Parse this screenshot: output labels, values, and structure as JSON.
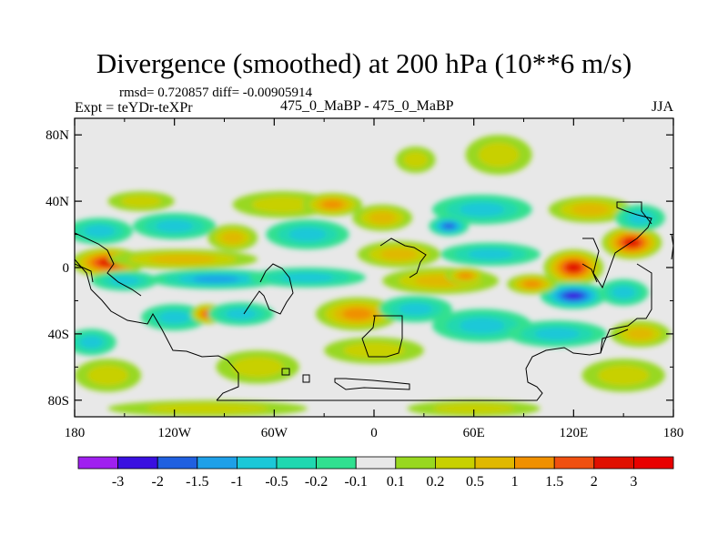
{
  "chart_data": {
    "type": "heatmap",
    "title": "Divergence (smoothed) at 200 hPa (10**6 m/s)",
    "stats_text": "rmsd= 0.720857 diff= -0.00905914",
    "experiment": "Expt = teYDr-teXPr",
    "runs": "475_0_MaBP - 475_0_MaBP",
    "season": "JJA",
    "x_range": [
      -180,
      180
    ],
    "y_range": [
      -90,
      90
    ],
    "x_ticks": [
      {
        "value": -180,
        "label": "180"
      },
      {
        "value": -120,
        "label": "120W"
      },
      {
        "value": -60,
        "label": "60W"
      },
      {
        "value": 0,
        "label": "0"
      },
      {
        "value": 60,
        "label": "60E"
      },
      {
        "value": 120,
        "label": "120E"
      },
      {
        "value": 180,
        "label": "180"
      }
    ],
    "y_ticks": [
      {
        "value": 80,
        "label": "80N"
      },
      {
        "value": 40,
        "label": "40N"
      },
      {
        "value": 0,
        "label": "0"
      },
      {
        "value": -40,
        "label": "40S"
      },
      {
        "value": -80,
        "label": "80S"
      }
    ],
    "colorbar": {
      "levels": [
        "-3",
        "-2",
        "-1.5",
        "-1",
        "-0.5",
        "-0.2",
        "-0.1",
        "0.1",
        "0.2",
        "0.5",
        "1",
        "1.5",
        "2",
        "3"
      ],
      "colors": [
        "#a020f0",
        "#3a10e0",
        "#2060e0",
        "#1ea0e8",
        "#1cc8d8",
        "#20d8b0",
        "#30e090",
        "#e8e8e8",
        "#98d820",
        "#c8d000",
        "#e0b800",
        "#f09000",
        "#f05010",
        "#e01000",
        "#e80000"
      ]
    },
    "features": [
      {
        "lon": -160,
        "lat": 3,
        "rx": 22,
        "ry": 9,
        "value": 2.2
      },
      {
        "lon": -115,
        "lat": 5,
        "rx": 45,
        "ry": 6,
        "value": 0.9
      },
      {
        "lon": -150,
        "lat": -8,
        "rx": 20,
        "ry": 6,
        "value": -0.8
      },
      {
        "lon": -95,
        "lat": -7,
        "rx": 40,
        "ry": 6,
        "value": -1.0
      },
      {
        "lon": -40,
        "lat": -6,
        "rx": 35,
        "ry": 6,
        "value": -0.7
      },
      {
        "lon": -165,
        "lat": 22,
        "rx": 20,
        "ry": 8,
        "value": -0.6
      },
      {
        "lon": -120,
        "lat": 25,
        "rx": 25,
        "ry": 8,
        "value": -0.5
      },
      {
        "lon": -85,
        "lat": 18,
        "rx": 15,
        "ry": 8,
        "value": 0.7
      },
      {
        "lon": -40,
        "lat": 20,
        "rx": 25,
        "ry": 9,
        "value": -0.6
      },
      {
        "lon": -55,
        "lat": 38,
        "rx": 30,
        "ry": 8,
        "value": 0.4
      },
      {
        "lon": -25,
        "lat": 38,
        "rx": 18,
        "ry": 7,
        "value": 1.0
      },
      {
        "lon": -140,
        "lat": 40,
        "rx": 20,
        "ry": 6,
        "value": 0.3
      },
      {
        "lon": 75,
        "lat": 68,
        "rx": 20,
        "ry": 12,
        "value": 0.2
      },
      {
        "lon": 25,
        "lat": 65,
        "rx": 12,
        "ry": 8,
        "value": 0.2
      },
      {
        "lon": 65,
        "lat": 35,
        "rx": 30,
        "ry": 9,
        "value": -0.6
      },
      {
        "lon": 45,
        "lat": 25,
        "rx": 12,
        "ry": 6,
        "value": -1.6
      },
      {
        "lon": 5,
        "lat": 30,
        "rx": 18,
        "ry": 8,
        "value": 0.7
      },
      {
        "lon": 15,
        "lat": 8,
        "rx": 25,
        "ry": 8,
        "value": 0.9
      },
      {
        "lon": 70,
        "lat": 8,
        "rx": 30,
        "ry": 7,
        "value": -0.6
      },
      {
        "lon": 40,
        "lat": -8,
        "rx": 35,
        "ry": 8,
        "value": 0.8
      },
      {
        "lon": 55,
        "lat": -5,
        "rx": 12,
        "ry": 5,
        "value": 1.4
      },
      {
        "lon": 120,
        "lat": 0,
        "rx": 18,
        "ry": 11,
        "value": 2.6
      },
      {
        "lon": 155,
        "lat": 15,
        "rx": 18,
        "ry": 10,
        "value": 2.1
      },
      {
        "lon": 130,
        "lat": 35,
        "rx": 25,
        "ry": 8,
        "value": 0.5
      },
      {
        "lon": 160,
        "lat": 30,
        "rx": 15,
        "ry": 8,
        "value": -0.7
      },
      {
        "lon": 120,
        "lat": -17,
        "rx": 20,
        "ry": 8,
        "value": -2.0
      },
      {
        "lon": 150,
        "lat": -15,
        "rx": 15,
        "ry": 8,
        "value": -0.6
      },
      {
        "lon": 95,
        "lat": -10,
        "rx": 15,
        "ry": 6,
        "value": 1.0
      },
      {
        "lon": -120,
        "lat": -30,
        "rx": 20,
        "ry": 8,
        "value": -0.6
      },
      {
        "lon": -100,
        "lat": -28,
        "rx": 10,
        "ry": 6,
        "value": 1.5
      },
      {
        "lon": -80,
        "lat": -28,
        "rx": 20,
        "ry": 7,
        "value": -0.8
      },
      {
        "lon": -10,
        "lat": -28,
        "rx": 25,
        "ry": 10,
        "value": 1.2
      },
      {
        "lon": 0,
        "lat": -50,
        "rx": 30,
        "ry": 8,
        "value": 0.3
      },
      {
        "lon": 25,
        "lat": -25,
        "rx": 22,
        "ry": 8,
        "value": -0.7
      },
      {
        "lon": 65,
        "lat": -35,
        "rx": 30,
        "ry": 10,
        "value": -0.7
      },
      {
        "lon": 110,
        "lat": -40,
        "rx": 30,
        "ry": 8,
        "value": -0.5
      },
      {
        "lon": 160,
        "lat": -40,
        "rx": 18,
        "ry": 8,
        "value": 0.6
      },
      {
        "lon": -170,
        "lat": -45,
        "rx": 15,
        "ry": 8,
        "value": -0.5
      },
      {
        "lon": -160,
        "lat": -65,
        "rx": 20,
        "ry": 10,
        "value": 0.2
      },
      {
        "lon": -70,
        "lat": -60,
        "rx": 25,
        "ry": 10,
        "value": 0.2
      },
      {
        "lon": 150,
        "lat": -65,
        "rx": 25,
        "ry": 10,
        "value": 0.2
      },
      {
        "lon": -100,
        "lat": -85,
        "rx": 60,
        "ry": 5,
        "value": 0.2
      },
      {
        "lon": 60,
        "lat": -85,
        "rx": 40,
        "ry": 5,
        "value": 0.2
      }
    ]
  }
}
